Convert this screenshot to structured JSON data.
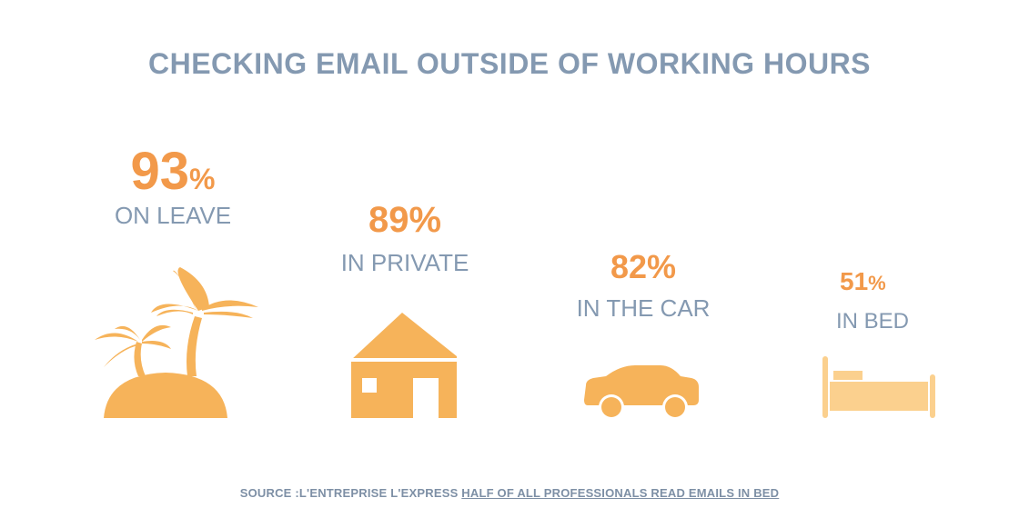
{
  "title": "CHECKING EMAIL OUTSIDE OF WORKING HOURS",
  "colors": {
    "accent": "#f2994a",
    "icon": "#f6b35a",
    "icon_light": "#fbd08e",
    "text": "#8499b1"
  },
  "chart_data": {
    "type": "table",
    "title": "CHECKING EMAIL OUTSIDE OF WORKING HOURS",
    "categories": [
      "ON LEAVE",
      "IN PRIVATE",
      "IN THE CAR",
      "IN BED"
    ],
    "values": [
      93,
      89,
      82,
      51
    ],
    "unit": "%",
    "icons": [
      "palm-island-icon",
      "house-icon",
      "car-icon",
      "bed-icon"
    ]
  },
  "stats": [
    {
      "value": "93",
      "unit": "%",
      "label": "ON LEAVE",
      "icon": "palm-island-icon"
    },
    {
      "value": "89",
      "unit": "%",
      "label": "IN PRIVATE",
      "icon": "house-icon"
    },
    {
      "value": "82",
      "unit": "%",
      "label": "IN THE CAR",
      "icon": "car-icon"
    },
    {
      "value": "51",
      "unit": "%",
      "label": "IN BED",
      "icon": "bed-icon"
    }
  ],
  "source": {
    "prefix": "SOURCE :L'ENTREPRISE L'EXPRESS ",
    "link_text": "HALF OF ALL PROFESSIONALS READ EMAILS IN BED"
  }
}
